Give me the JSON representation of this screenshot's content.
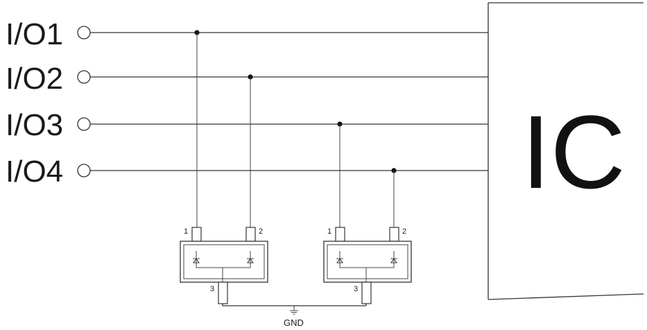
{
  "io_lines": [
    {
      "label": "I/O1"
    },
    {
      "label": "I/O2"
    },
    {
      "label": "I/O3"
    },
    {
      "label": "I/O4"
    }
  ],
  "ic": {
    "label": "IC"
  },
  "packages": [
    {
      "pin1": "1",
      "pin2": "2",
      "pin3": "3"
    },
    {
      "pin1": "1",
      "pin2": "2",
      "pin3": "3"
    }
  ],
  "gnd": {
    "label": "GND"
  },
  "colors": {
    "line": "#333333",
    "text": "#1a1a1a"
  }
}
